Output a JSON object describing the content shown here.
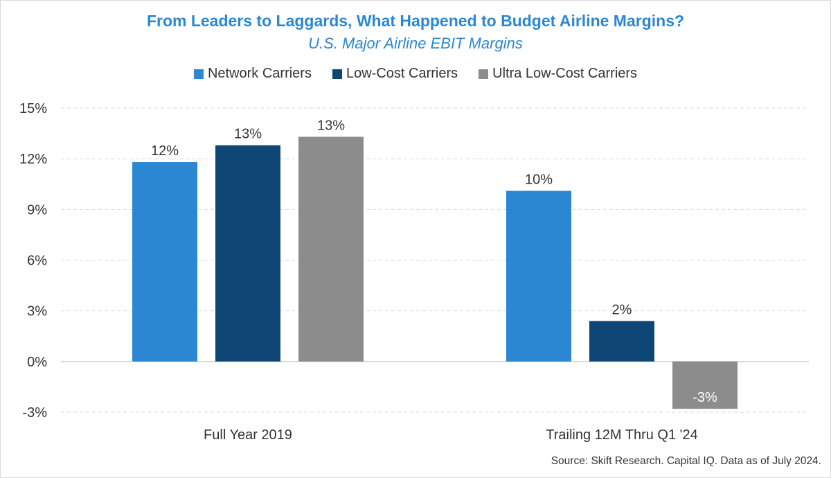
{
  "chart_data": {
    "type": "bar",
    "title": "From Leaders to Laggards, What Happened to Budget Airline Margins?",
    "subtitle": "U.S. Major Airline EBIT Margins",
    "categories": [
      "Full Year 2019",
      "Trailing 12M Thru Q1 '24"
    ],
    "series": [
      {
        "name": "Network Carriers",
        "color": "#2b87d1",
        "values": [
          11.8,
          10.1
        ],
        "labels": [
          "12%",
          "10%"
        ]
      },
      {
        "name": "Low-Cost Carriers",
        "color": "#0e4775",
        "values": [
          12.8,
          2.4
        ],
        "labels": [
          "13%",
          "2%"
        ]
      },
      {
        "name": "Ultra Low-Cost Carriers",
        "color": "#8c8c8c",
        "values": [
          13.3,
          -2.8
        ],
        "labels": [
          "13%",
          "-3%"
        ]
      }
    ],
    "ylim": [
      -3,
      15
    ],
    "yticks": [
      15,
      12,
      9,
      6,
      3,
      0,
      -3
    ],
    "ytick_labels": [
      "15%",
      "12%",
      "9%",
      "6%",
      "3%",
      "0%",
      "-3%"
    ],
    "grid": true,
    "legend": "top-center",
    "xlabel": "",
    "ylabel": "",
    "source": "Source: Skift Research. Capital IQ. Data as of July 2024."
  }
}
